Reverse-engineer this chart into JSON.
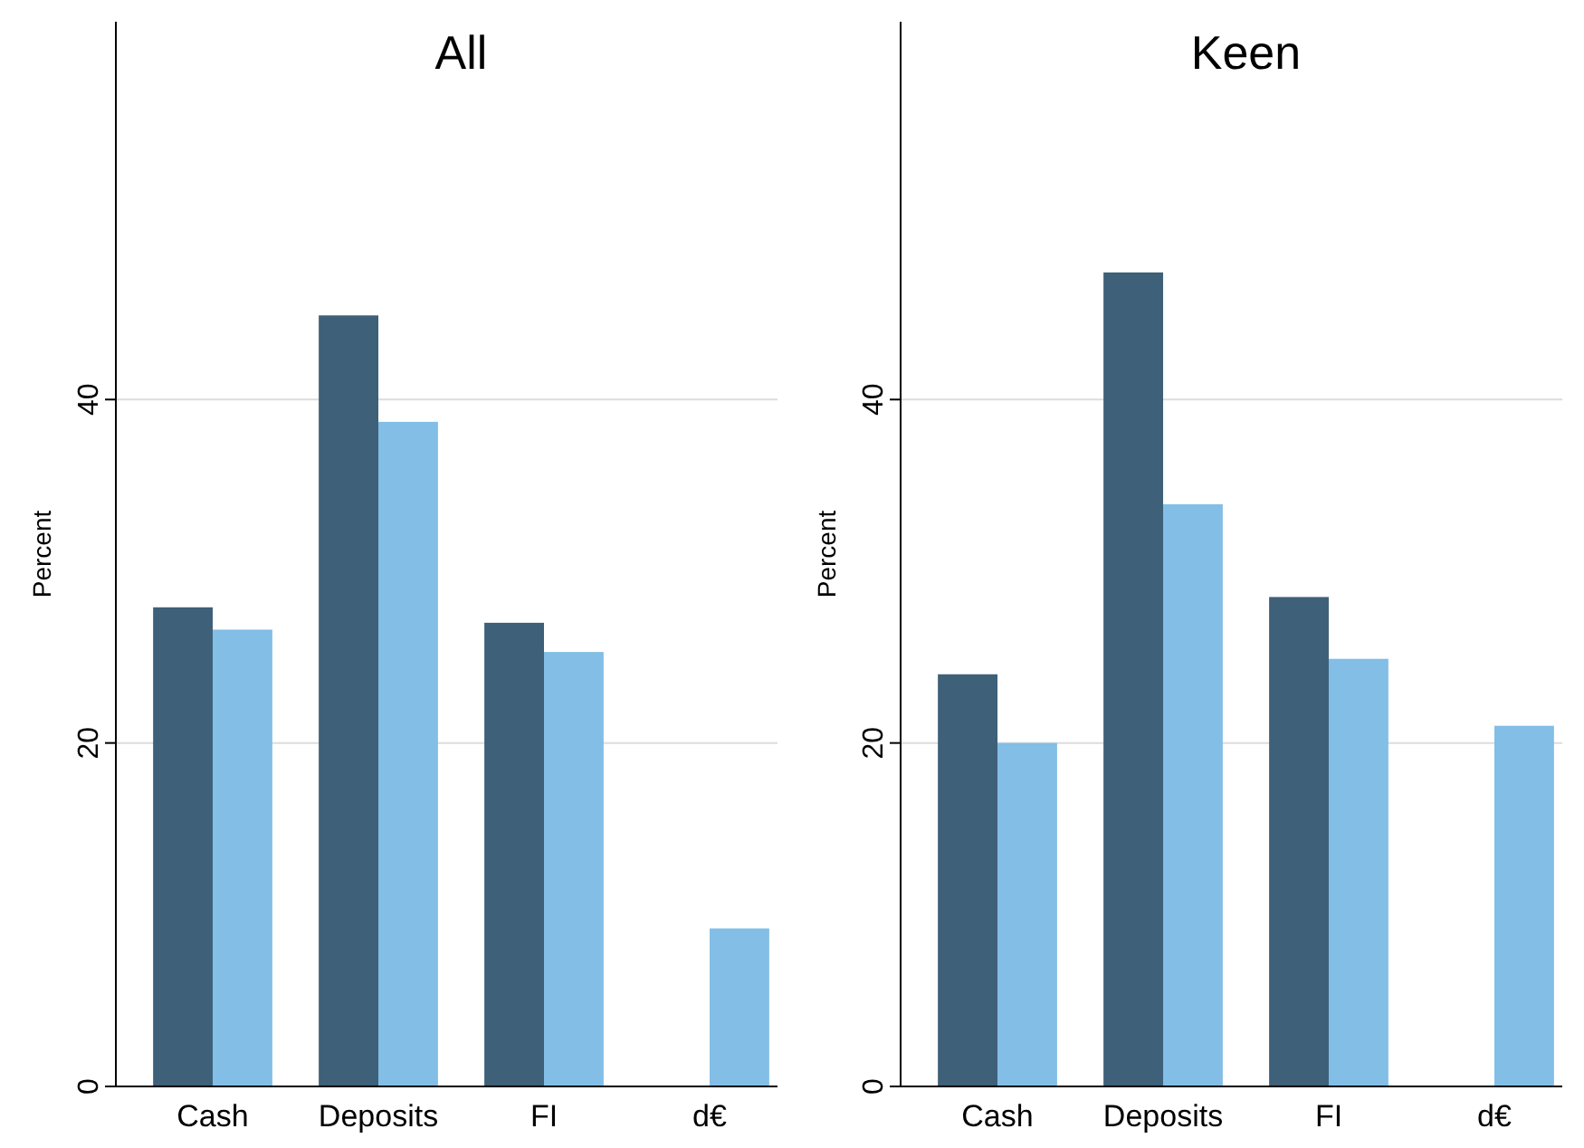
{
  "chart_data": [
    {
      "type": "bar",
      "title": "All",
      "ylabel": "Percent",
      "categories": [
        "Cash",
        "Deposits",
        "FI",
        "d€"
      ],
      "series": [
        {
          "color": "#3e6079",
          "values": [
            27.9,
            44.9,
            27.0,
            null
          ]
        },
        {
          "color": "#82bee6",
          "values": [
            26.6,
            38.7,
            25.3,
            9.2
          ]
        }
      ],
      "ylim": [
        0,
        62
      ],
      "yticks": [
        0,
        20,
        40
      ],
      "grid": "y"
    },
    {
      "type": "bar",
      "title": "Keen",
      "ylabel": "Percent",
      "categories": [
        "Cash",
        "Deposits",
        "FI",
        "d€"
      ],
      "series": [
        {
          "color": "#3e6079",
          "values": [
            24.0,
            47.4,
            28.5,
            null
          ]
        },
        {
          "color": "#82bee6",
          "values": [
            20.0,
            33.9,
            24.9,
            21.0
          ]
        }
      ],
      "ylim": [
        0,
        62
      ],
      "yticks": [
        0,
        20,
        40
      ],
      "grid": "y"
    }
  ]
}
